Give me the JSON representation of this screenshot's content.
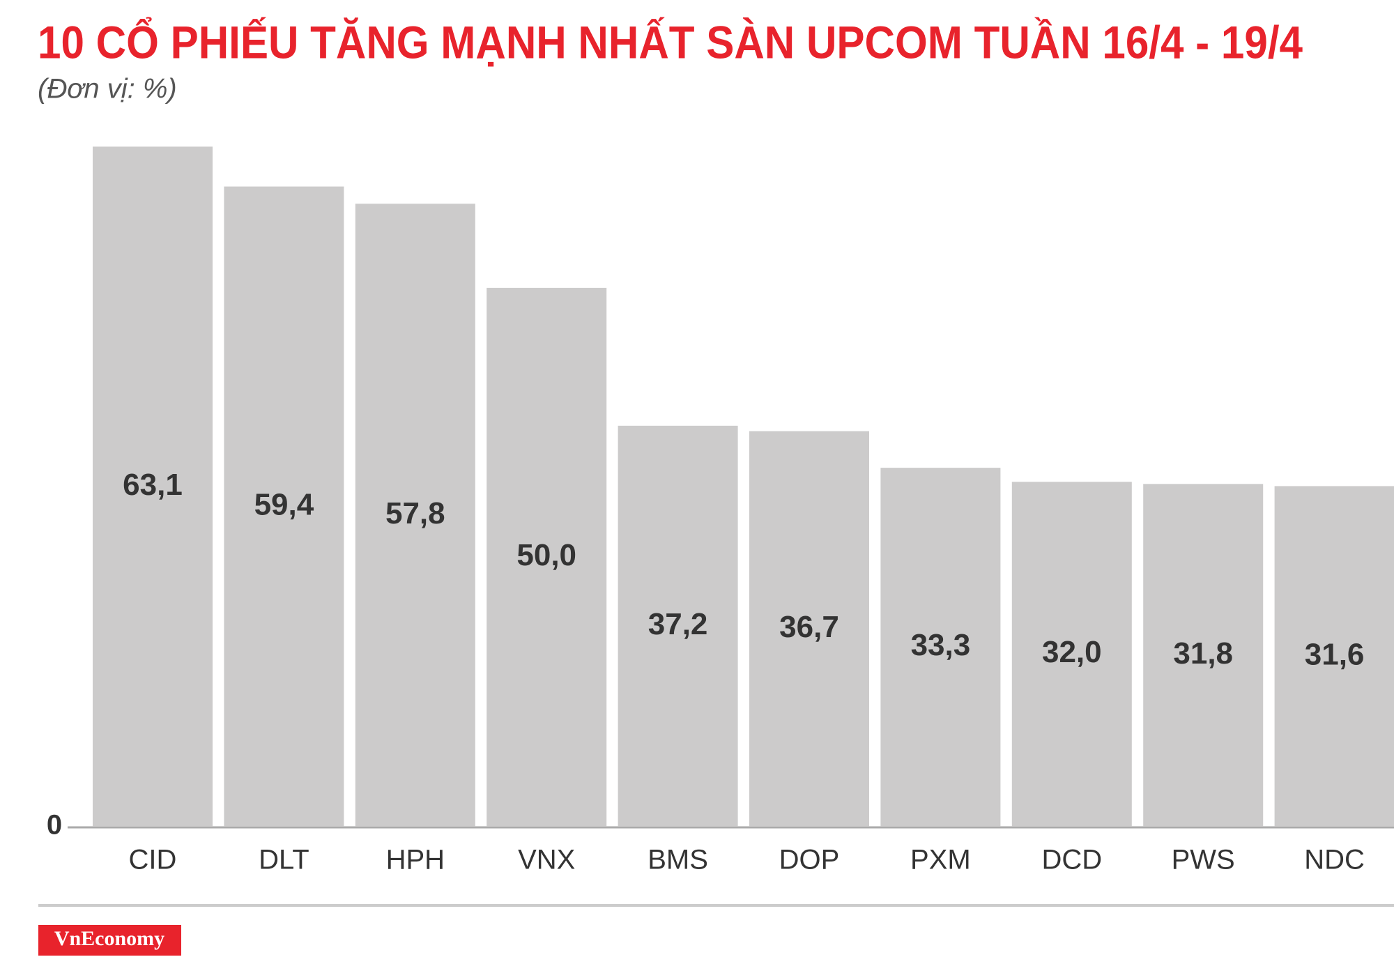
{
  "chart_data": {
    "type": "bar",
    "title": "10 CỔ PHIẾU TĂNG MẠNH NHẤT SÀN UPCOM TUẦN 16/4 - 19/4",
    "subtitle": "(Đơn vị: %)",
    "categories": [
      "CID",
      "DLT",
      "HPH",
      "VNX",
      "BMS",
      "DOP",
      "PXM",
      "DCD",
      "PWS",
      "NDC"
    ],
    "values": [
      63.1,
      59.4,
      57.8,
      50.0,
      37.2,
      36.7,
      33.3,
      32.0,
      31.8,
      31.6
    ],
    "value_labels": [
      "63,1",
      "59,4",
      "57,8",
      "50,0",
      "37,2",
      "36,7",
      "33,3",
      "32,0",
      "31,8",
      "31,6"
    ],
    "color": "#cccbcb",
    "ylim": [
      0,
      65
    ],
    "yticks": [
      0
    ],
    "grid": false,
    "brand": "VnEconomy"
  }
}
